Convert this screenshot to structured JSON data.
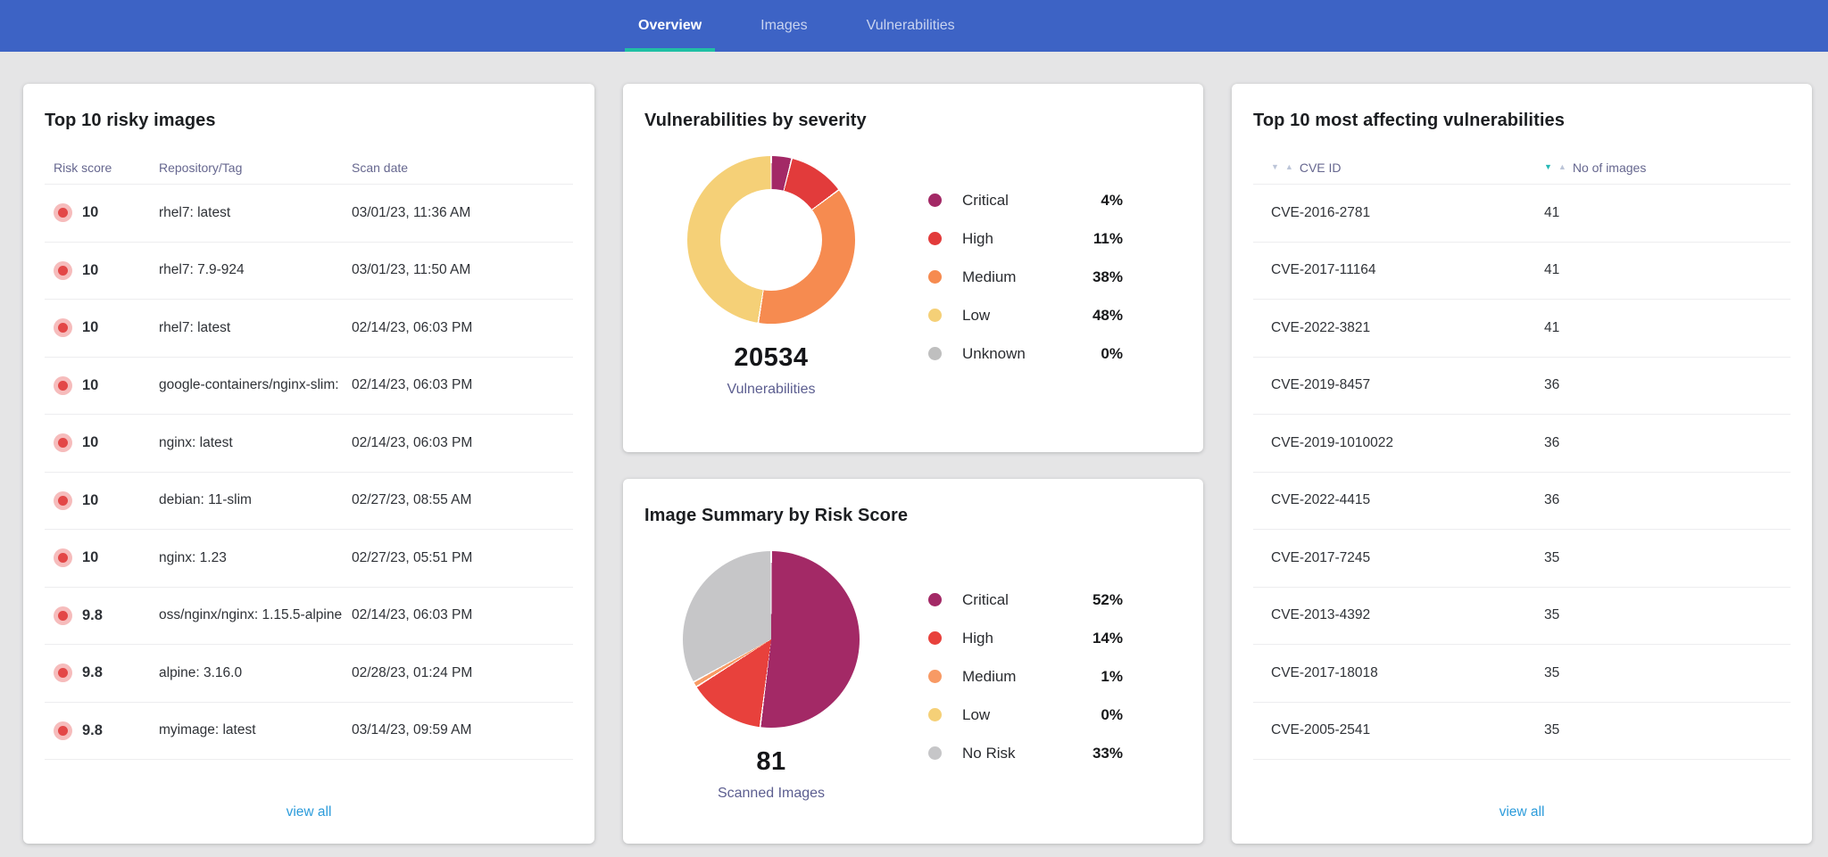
{
  "nav": {
    "tabs": [
      {
        "label": "Overview",
        "active": true
      },
      {
        "label": "Images",
        "active": false
      },
      {
        "label": "Vulnerabilities",
        "active": false
      }
    ]
  },
  "risky_images": {
    "title": "Top 10 risky images",
    "columns": [
      "Risk score",
      "Repository/Tag",
      "Scan date"
    ],
    "rows": [
      {
        "score": "10",
        "repo": "rhel7: latest",
        "date": "03/01/23, 11:36 AM"
      },
      {
        "score": "10",
        "repo": "rhel7: 7.9-924",
        "date": "03/01/23, 11:50 AM"
      },
      {
        "score": "10",
        "repo": "rhel7: latest",
        "date": "02/14/23, 06:03 PM"
      },
      {
        "score": "10",
        "repo": "google-containers/nginx-slim:",
        "date": "02/14/23, 06:03 PM"
      },
      {
        "score": "10",
        "repo": "nginx: latest",
        "date": "02/14/23, 06:03 PM"
      },
      {
        "score": "10",
        "repo": "debian: 11-slim",
        "date": "02/27/23, 08:55 AM"
      },
      {
        "score": "10",
        "repo": "nginx: 1.23",
        "date": "02/27/23, 05:51 PM"
      },
      {
        "score": "9.8",
        "repo": "oss/nginx/nginx: 1.15.5-alpine",
        "date": "02/14/23, 06:03 PM"
      },
      {
        "score": "9.8",
        "repo": "alpine: 3.16.0",
        "date": "02/28/23, 01:24 PM"
      },
      {
        "score": "9.8",
        "repo": "myimage: latest",
        "date": "03/14/23, 09:59 AM"
      }
    ],
    "view_all": "view all"
  },
  "top_vulnerabilities": {
    "title": "Top 10 most affecting vulnerabilities",
    "columns": [
      {
        "label": "CVE ID",
        "sorted": ""
      },
      {
        "label": "No of images",
        "sorted": "desc"
      }
    ],
    "rows": [
      {
        "cve": "CVE-2016-2781",
        "images": "41"
      },
      {
        "cve": "CVE-2017-11164",
        "images": "41"
      },
      {
        "cve": "CVE-2022-3821",
        "images": "41"
      },
      {
        "cve": "CVE-2019-8457",
        "images": "36"
      },
      {
        "cve": "CVE-2019-1010022",
        "images": "36"
      },
      {
        "cve": "CVE-2022-4415",
        "images": "36"
      },
      {
        "cve": "CVE-2017-7245",
        "images": "35"
      },
      {
        "cve": "CVE-2013-4392",
        "images": "35"
      },
      {
        "cve": "CVE-2017-18018",
        "images": "35"
      },
      {
        "cve": "CVE-2005-2541",
        "images": "35"
      }
    ],
    "view_all": "view all"
  },
  "chart_data": [
    {
      "type": "pie",
      "variant": "donut",
      "title": "Vulnerabilities by severity",
      "total_label": "20534",
      "total_sublabel": "Vulnerabilities",
      "legend_position": "right",
      "series": [
        {
          "name": "Critical",
          "pct": 4,
          "pct_label": "4%",
          "color": "#A32966"
        },
        {
          "name": "High",
          "pct": 11,
          "pct_label": "11%",
          "color": "#E23B3B"
        },
        {
          "name": "Medium",
          "pct": 38,
          "pct_label": "38%",
          "color": "#F68B50"
        },
        {
          "name": "Low",
          "pct": 48,
          "pct_label": "48%",
          "color": "#F5D077"
        },
        {
          "name": "Unknown",
          "pct": 0,
          "pct_label": "0%",
          "color": "#BFBFBF"
        }
      ]
    },
    {
      "type": "pie",
      "variant": "solid",
      "title": "Image Summary by Risk Score",
      "total_label": "81",
      "total_sublabel": "Scanned Images",
      "legend_position": "right",
      "series": [
        {
          "name": "Critical",
          "pct": 52,
          "pct_label": "52%",
          "color": "#A32966"
        },
        {
          "name": "High",
          "pct": 14,
          "pct_label": "14%",
          "color": "#E8413C"
        },
        {
          "name": "Medium",
          "pct": 1,
          "pct_label": "1%",
          "color": "#F89A64"
        },
        {
          "name": "Low",
          "pct": 0,
          "pct_label": "0%",
          "color": "#F5D077"
        },
        {
          "name": "No Risk",
          "pct": 33,
          "pct_label": "33%",
          "color": "#C6C6C8"
        }
      ]
    }
  ],
  "colors": {
    "nav_bg": "#3D63C5",
    "nav_tab_inactive": "#C9D4F0",
    "nav_tab_active": "#FFFFFF",
    "tab_underline": "#20BFA4",
    "page_bg": "#E5E5E6",
    "card_bg": "#FFFFFF",
    "title_text": "#1C1E21",
    "muted_header": "#66678F",
    "row_text": "#2F3237",
    "divider": "#EDEDEF",
    "link": "#2D9CDB",
    "badge_outer": "#F6BCBC",
    "badge_inner": "#E34747",
    "big_number": "#141518",
    "sub_label": "#5C5E90",
    "sort_active": "#25B8B5",
    "sort_inactive": "#BCC5D8"
  }
}
